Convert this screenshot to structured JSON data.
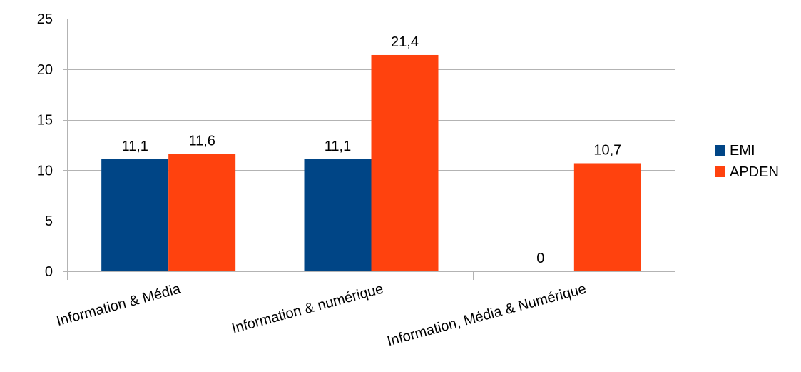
{
  "chart_data": {
    "type": "bar",
    "categories": [
      "Information & Média",
      "Information & numérique",
      "Information, Média & Numérique"
    ],
    "series": [
      {
        "name": "EMI",
        "values": [
          11.1,
          11.1,
          0
        ],
        "labels": [
          "11,1",
          "11,1",
          "0"
        ],
        "color": "#004586"
      },
      {
        "name": "APDEN",
        "values": [
          11.6,
          21.4,
          10.7
        ],
        "labels": [
          "11,6",
          "21,4",
          "10,7"
        ],
        "color": "#ff420e"
      }
    ],
    "ylim": [
      0,
      25
    ],
    "yticks": [
      0,
      5,
      10,
      15,
      20,
      25
    ],
    "grid": true,
    "legend": "right"
  }
}
